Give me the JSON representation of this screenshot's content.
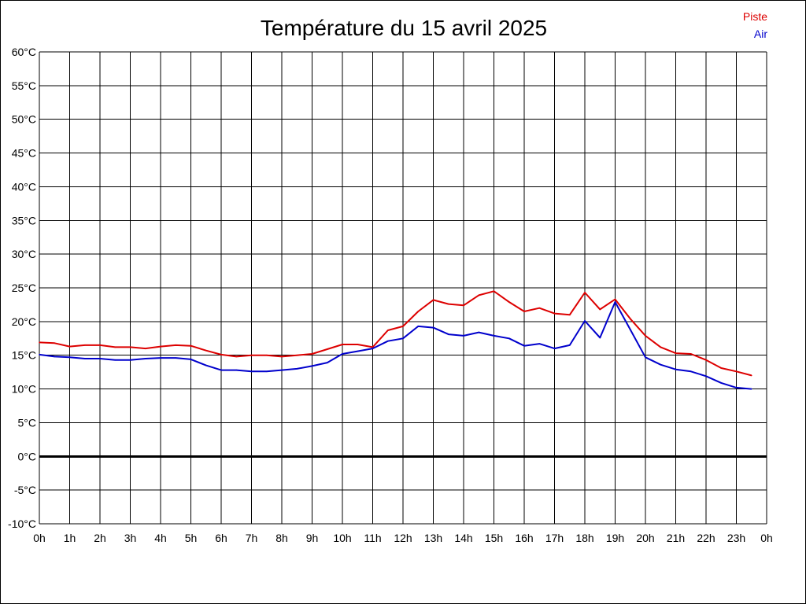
{
  "chart_data": {
    "type": "line",
    "title": "Température du 15 avril 2025",
    "xlabel": "",
    "ylabel": "",
    "ylim": [
      -10,
      60
    ],
    "y_step": 5,
    "y_tick_labels": [
      "-10°C",
      "-5°C",
      "0°C",
      "5°C",
      "10°C",
      "15°C",
      "20°C",
      "25°C",
      "30°C",
      "35°C",
      "40°C",
      "45°C",
      "50°C",
      "55°C",
      "60°C"
    ],
    "x_tick_labels": [
      "0h",
      "1h",
      "2h",
      "3h",
      "4h",
      "5h",
      "6h",
      "7h",
      "8h",
      "9h",
      "10h",
      "11h",
      "12h",
      "13h",
      "14h",
      "15h",
      "16h",
      "17h",
      "18h",
      "19h",
      "20h",
      "21h",
      "22h",
      "23h",
      "0h"
    ],
    "xlim_hours": [
      0,
      24
    ],
    "grid": true,
    "zero_line": true,
    "legend_position": "top-right",
    "x": [
      0,
      0.5,
      1,
      1.5,
      2,
      2.5,
      3,
      3.5,
      4,
      4.5,
      5,
      5.5,
      6,
      6.5,
      7,
      7.5,
      8,
      8.5,
      9,
      9.5,
      10,
      10.5,
      11,
      11.5,
      12,
      12.5,
      13,
      13.5,
      14,
      14.5,
      15,
      15.5,
      16,
      16.5,
      17,
      17.5,
      18,
      18.5,
      19,
      19.5,
      20,
      20.5,
      21,
      21.5,
      22,
      22.5,
      23,
      23.5
    ],
    "series": [
      {
        "name": "Piste",
        "color": "#dd0000",
        "values": [
          16.9,
          16.8,
          16.3,
          16.5,
          16.5,
          16.2,
          16.2,
          16.0,
          16.3,
          16.5,
          16.4,
          15.7,
          15.1,
          14.8,
          15.0,
          15.0,
          14.8,
          15.0,
          15.2,
          15.9,
          16.6,
          16.6,
          16.2,
          18.7,
          19.3,
          21.5,
          23.2,
          22.6,
          22.4,
          23.9,
          24.5,
          22.9,
          21.5,
          22.0,
          21.2,
          21.0,
          24.3,
          21.8,
          23.3,
          20.4,
          17.9,
          16.2,
          15.3,
          15.2,
          14.3,
          13.1,
          12.6,
          12.0
        ]
      },
      {
        "name": "Air",
        "color": "#0000cc",
        "values": [
          15.1,
          14.8,
          14.7,
          14.5,
          14.5,
          14.3,
          14.3,
          14.5,
          14.6,
          14.6,
          14.4,
          13.5,
          12.8,
          12.8,
          12.6,
          12.6,
          12.8,
          13.0,
          13.4,
          13.9,
          15.2,
          15.6,
          16.0,
          17.1,
          17.5,
          19.3,
          19.1,
          18.1,
          17.9,
          18.4,
          17.9,
          17.5,
          16.4,
          16.7,
          16.0,
          16.5,
          20.1,
          17.6,
          22.9,
          18.8,
          14.7,
          13.6,
          12.9,
          12.6,
          11.9,
          10.9,
          10.2,
          10.0
        ]
      }
    ]
  }
}
